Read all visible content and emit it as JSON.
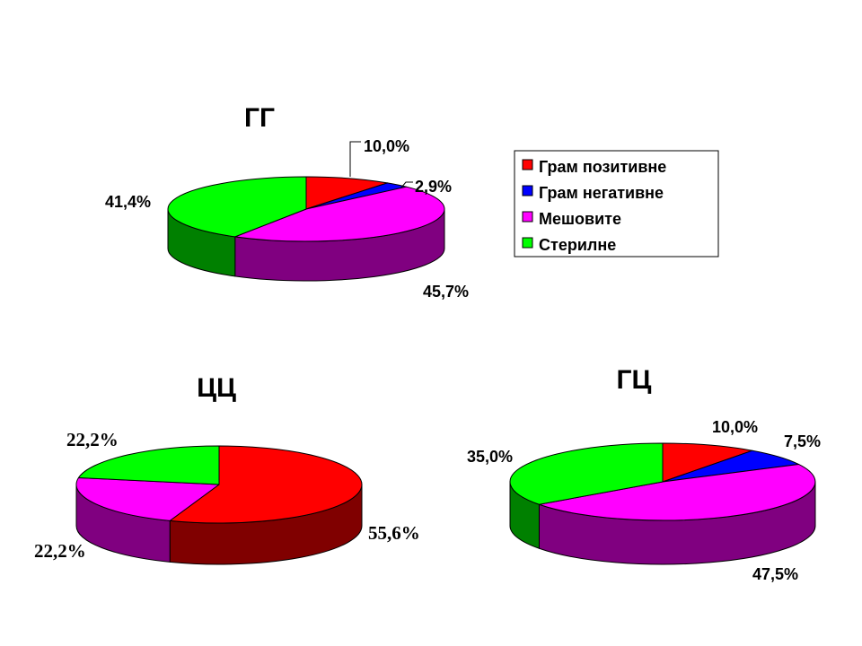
{
  "legend": {
    "items": [
      {
        "label": "Грам позитивне",
        "color": "#ff0000",
        "side": "#800000"
      },
      {
        "label": "Грам негативне",
        "color": "#0000ff",
        "side": "#000080"
      },
      {
        "label": "Мешовите",
        "color": "#ff00ff",
        "side": "#800080"
      },
      {
        "label": "Стерилне",
        "color": "#00ff00",
        "side": "#008000"
      }
    ]
  },
  "chart_data": [
    {
      "type": "pie",
      "style": "3d",
      "title": "ГГ",
      "categories": [
        "Грам позитивне",
        "Грам негативне",
        "Мешовите",
        "Стерилне"
      ],
      "values": [
        10.0,
        2.9,
        45.7,
        41.4
      ],
      "labels": [
        "10,0%",
        "2,9%",
        "45,7%",
        "41,4%"
      ]
    },
    {
      "type": "pie",
      "style": "3d",
      "title": "ЦЦ",
      "categories": [
        "Грам позитивне",
        "Мешовите",
        "Стерилне"
      ],
      "values": [
        55.6,
        22.2,
        22.2
      ],
      "labels": [
        "55,6%",
        "22,2%",
        "22,2%"
      ]
    },
    {
      "type": "pie",
      "style": "3d",
      "title": "ГЦ",
      "categories": [
        "Грам позитивне",
        "Грам негативне",
        "Мешовите",
        "Стерилне"
      ],
      "values": [
        10.0,
        7.5,
        47.5,
        35.0
      ],
      "labels": [
        "10,0%",
        "7,5%",
        "47,5%",
        "35,0%"
      ]
    }
  ]
}
